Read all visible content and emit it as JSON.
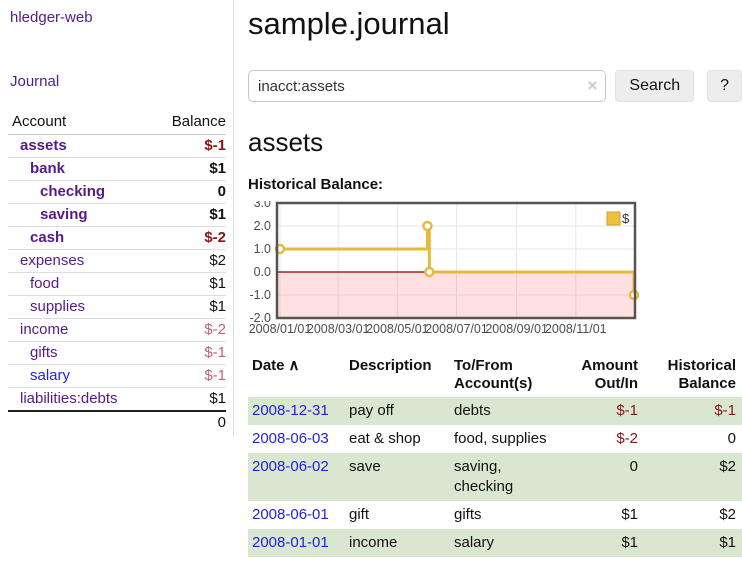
{
  "app": {
    "title": "hledger-web",
    "nav_journal": "Journal"
  },
  "theme": {
    "visited_link": "#551a8b",
    "link": "#2323dd",
    "negative_strong": "#8b1616",
    "negative_soft": "#bb6576",
    "row_shade": "#d9e7d1"
  },
  "sidebar": {
    "header": {
      "account": "Account",
      "balance": "Balance"
    },
    "accounts": [
      {
        "name": "assets",
        "level": 1,
        "bold": true,
        "link": "visited",
        "balance": "$-1",
        "balance_style": "neg-strong"
      },
      {
        "name": "bank",
        "level": 2,
        "bold": true,
        "link": "visited",
        "balance": "$1",
        "balance_style": "pos"
      },
      {
        "name": "checking",
        "level": 3,
        "bold": true,
        "link": "visited",
        "balance": "0",
        "balance_style": "pos"
      },
      {
        "name": "saving",
        "level": 3,
        "bold": true,
        "link": "visited",
        "balance": "$1",
        "balance_style": "pos"
      },
      {
        "name": "cash",
        "level": 2,
        "bold": true,
        "link": "visited",
        "balance": "$-2",
        "balance_style": "neg-strong"
      },
      {
        "name": "expenses",
        "level": 1,
        "bold": false,
        "link": "visited",
        "balance": "$2",
        "balance_style": "pos"
      },
      {
        "name": "food",
        "level": 2,
        "bold": false,
        "link": "visited",
        "balance": "$1",
        "balance_style": "pos"
      },
      {
        "name": "supplies",
        "level": 2,
        "bold": false,
        "link": "visited",
        "balance": "$1",
        "balance_style": "pos"
      },
      {
        "name": "income",
        "level": 1,
        "bold": false,
        "link": "visited",
        "balance": "$-2",
        "balance_style": "neg-soft"
      },
      {
        "name": "gifts",
        "level": 2,
        "bold": false,
        "link": "visited",
        "balance": "$-1",
        "balance_style": "neg-soft"
      },
      {
        "name": "salary",
        "level": 2,
        "bold": false,
        "link": "unvisited",
        "balance": "$-1",
        "balance_style": "neg-soft"
      },
      {
        "name": "liabilities:debts",
        "level": 1,
        "bold": false,
        "link": "visited",
        "balance": "$1",
        "balance_style": "pos"
      }
    ],
    "total": "0"
  },
  "main": {
    "title": "sample.journal",
    "search": {
      "value": "inacct:assets",
      "clear_icon": "×",
      "button": "Search",
      "help": "?"
    },
    "account_heading": "assets",
    "chart_heading": "Historical Balance:"
  },
  "chart_data": {
    "type": "line",
    "title": "Historical Balance",
    "xlabel": "",
    "ylabel": "",
    "x_range": [
      "2008/01/01",
      "2008/12/31"
    ],
    "x_ticks": [
      "2008/01/01",
      "2008/03/01",
      "2008/05/01",
      "2008/07/01",
      "2008/09/01",
      "2008/11/01"
    ],
    "y_ticks": [
      3.0,
      2.0,
      1.0,
      0.0,
      -1.0,
      -2.0
    ],
    "y_tick_labels": [
      "3.0",
      "2.0",
      "1.0",
      "0.0",
      "-1.0",
      "-2.0"
    ],
    "ylim": [
      -2.0,
      3.0
    ],
    "grid": true,
    "legend_position": "top-right",
    "series": [
      {
        "name": "$",
        "style": "step-line-with-points",
        "points": [
          {
            "date": "2008/01/01",
            "value": 1
          },
          {
            "date": "2008/06/01",
            "value": 2
          },
          {
            "date": "2008/06/03",
            "value": 0
          },
          {
            "date": "2008/12/31",
            "value": -1
          }
        ]
      }
    ],
    "colors": {
      "line": "#e6ba3e",
      "point_fill": "#ffffff",
      "legend_fill": "#edc240",
      "legend_border": "#c9a22e",
      "zero_line": "#8b0000",
      "negative_fill": "rgba(255,0,0,0.12)",
      "grid": "#e7e7e7",
      "plot_border": "#545454",
      "tick_text": "#4d4d4d"
    }
  },
  "table": {
    "sort_icon": "∧",
    "columns": [
      {
        "line1": "Date",
        "line2": "",
        "align": "left",
        "sorted": true
      },
      {
        "line1": "Description",
        "line2": "",
        "align": "left",
        "sorted": false
      },
      {
        "line1": "To/From",
        "line2": "Account(s)",
        "align": "left",
        "sorted": false
      },
      {
        "line1": "Amount",
        "line2": "Out/In",
        "align": "right",
        "sorted": false
      },
      {
        "line1": "Historical",
        "line2": "Balance",
        "align": "right",
        "sorted": false
      }
    ],
    "rows": [
      {
        "date": "2008-12-31",
        "description": "pay off",
        "accounts": "debts",
        "amount": "$-1",
        "amount_negative": true,
        "balance": "$-1",
        "balance_negative": true,
        "shaded": true
      },
      {
        "date": "2008-06-03",
        "description": "eat & shop",
        "accounts": "food, supplies",
        "amount": "$-2",
        "amount_negative": true,
        "balance": "0",
        "balance_negative": false,
        "shaded": false
      },
      {
        "date": "2008-06-02",
        "description": "save",
        "accounts": "saving, checking",
        "amount": "0",
        "amount_negative": false,
        "balance": "$2",
        "balance_negative": false,
        "shaded": true
      },
      {
        "date": "2008-06-01",
        "description": "gift",
        "accounts": "gifts",
        "amount": "$1",
        "amount_negative": false,
        "balance": "$2",
        "balance_negative": false,
        "shaded": false
      },
      {
        "date": "2008-01-01",
        "description": "income",
        "accounts": "salary",
        "amount": "$1",
        "amount_negative": false,
        "balance": "$1",
        "balance_negative": false,
        "shaded": true
      }
    ]
  }
}
